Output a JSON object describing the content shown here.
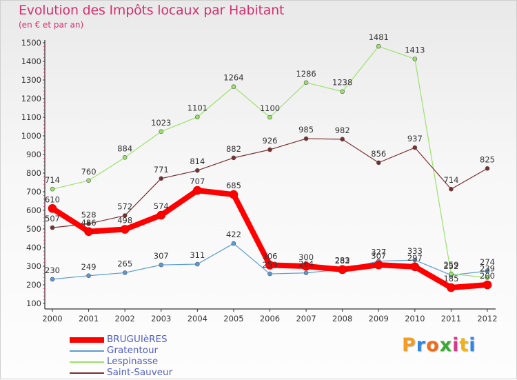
{
  "header": {
    "title": "Evolution des Impôts locaux par Habitant",
    "subtitle": "(en € et par an)"
  },
  "logo": {
    "letters": [
      "P",
      "r",
      "o",
      "x",
      "i",
      "t",
      "i"
    ],
    "colors": [
      "#f39c1f",
      "#2e86de",
      "#ef6c1a",
      "#3aa935",
      "#d43a8a",
      "#f0b21a",
      "#2e86de"
    ]
  },
  "chart_data": {
    "type": "line",
    "title": "Evolution des Impôts locaux par Habitant",
    "subtitle": "(en € et par an)",
    "x": [
      "2000",
      "2001",
      "2002",
      "2003",
      "2004",
      "2005",
      "2006",
      "2007",
      "2008",
      "2009",
      "2010",
      "2011",
      "2012"
    ],
    "ylim": [
      100,
      1500
    ],
    "yticks": [
      100,
      200,
      300,
      400,
      500,
      600,
      700,
      800,
      900,
      1000,
      1100,
      1200,
      1300,
      1400,
      1500
    ],
    "grid": false,
    "legend_position": "bottom-left",
    "series": [
      {
        "name": "Gratentour",
        "color": "#5b9bd5",
        "width": 1.2,
        "values": [
          230,
          249,
          265,
          307,
          311,
          422,
          259,
          264,
          283,
          327,
          333,
          252,
          274
        ],
        "labels": [
          "230",
          "249",
          "265",
          "307",
          "311",
          "422",
          "259",
          "264",
          "283",
          "327",
          "333",
          "252",
          "274"
        ]
      },
      {
        "name": "Lespinasse",
        "color": "#9be26a",
        "width": 1.2,
        "values": [
          714,
          760,
          884,
          1023,
          1101,
          1264,
          1100,
          1286,
          1238,
          1481,
          1413,
          259,
          239
        ],
        "labels": [
          "714",
          "760",
          "884",
          "1023",
          "1101",
          "1264",
          "1100",
          "1286",
          "1238",
          "1481",
          "1413",
          "259",
          "239"
        ]
      },
      {
        "name": "Saint-Sauveur",
        "color": "#7a2e2e",
        "width": 1.2,
        "values": [
          507,
          528,
          572,
          771,
          814,
          882,
          926,
          985,
          982,
          856,
          937,
          714,
          825
        ],
        "labels": [
          "507",
          "528",
          "572",
          "771",
          "814",
          "882",
          "926",
          "985",
          "982",
          "856",
          "937",
          "714",
          "825"
        ]
      },
      {
        "name": "BRUGUIèRES",
        "color": "#ff0000",
        "width": 8,
        "values": [
          610,
          486,
          498,
          574,
          707,
          685,
          306,
          300,
          282,
          307,
          297,
          185,
          200
        ],
        "labels": [
          "610",
          "486",
          "498",
          "574",
          "707",
          "685",
          "306",
          "300",
          "282",
          "307",
          "297",
          "185",
          "200"
        ]
      }
    ],
    "legend": [
      {
        "name": "BRUGUIèRES",
        "color": "#ff0000",
        "width": 8
      },
      {
        "name": "Gratentour",
        "color": "#5b9bd5",
        "width": 2
      },
      {
        "name": "Lespinasse",
        "color": "#9be26a",
        "width": 2
      },
      {
        "name": "Saint-Sauveur",
        "color": "#7a2e2e",
        "width": 2
      }
    ]
  }
}
